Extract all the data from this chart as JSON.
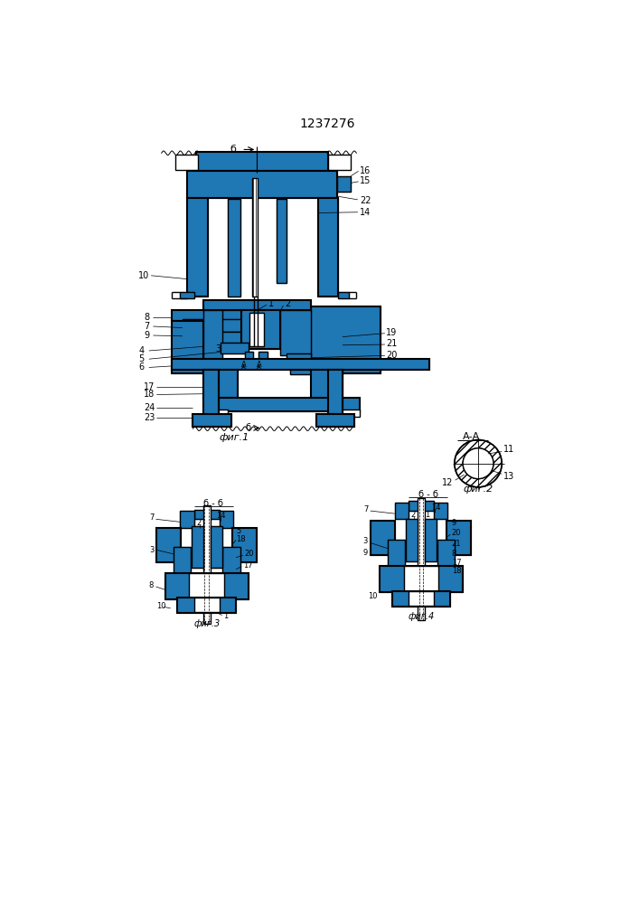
{
  "title": "1237276",
  "bg_color": "#ffffff",
  "fig1_caption": "фиг.1",
  "fig2_caption": "фиг.2",
  "fig3_caption": "фиг.3",
  "fig4_caption": "фиг.4",
  "fig2_label": "А-А",
  "fig3_label": "б-б",
  "fig4_label": "б-б"
}
